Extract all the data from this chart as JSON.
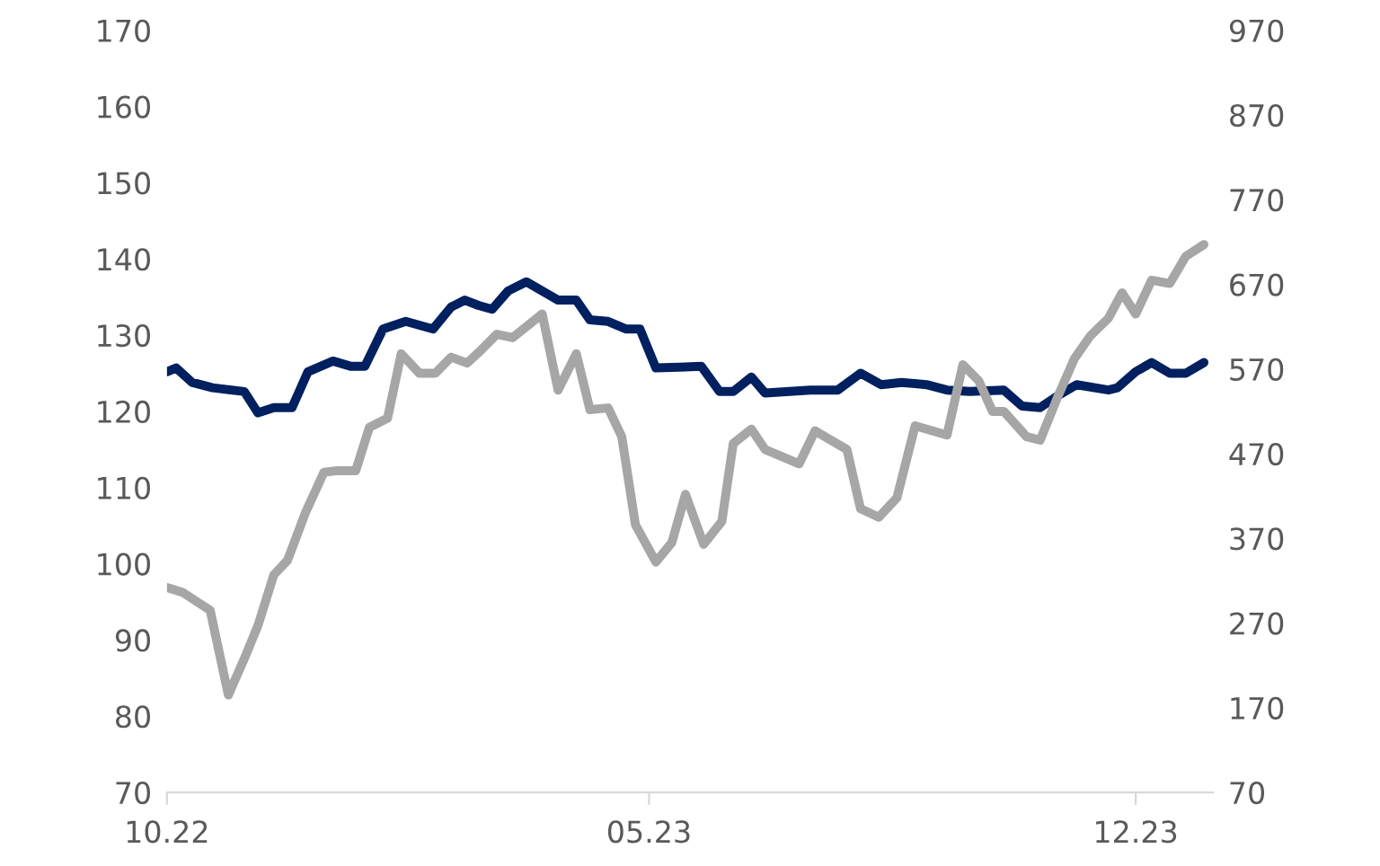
{
  "chart_data": {
    "type": "line",
    "xlim": [
      "2022-10-01",
      "2024-01-04"
    ],
    "xticks": [
      {
        "value": "2022-10-01",
        "label": "10.22"
      },
      {
        "value": "2023-05-01",
        "label": "05.23"
      },
      {
        "value": "2023-12-01",
        "label": "12.23"
      }
    ],
    "ylim": [
      70,
      170
    ],
    "yticks": [
      70,
      80,
      90,
      100,
      110,
      120,
      130,
      140,
      150,
      160,
      170
    ],
    "y2lim": [
      70,
      970
    ],
    "y2ticks": [
      70,
      170,
      270,
      370,
      470,
      570,
      670,
      770,
      870,
      970
    ],
    "grid": false,
    "legend": false,
    "marker": "none",
    "line_style": "solid",
    "series": [
      {
        "color": "#002060",
        "x": [
          "2022-10-01",
          "2022-10-05",
          "2022-10-12",
          "2022-10-21",
          "2022-11-04",
          "2022-11-10",
          "2022-11-17",
          "2022-11-25",
          "2022-12-02",
          "2022-12-13",
          "2022-12-21",
          "2022-12-27",
          "2023-01-04",
          "2023-01-14",
          "2023-01-26",
          "2023-02-03",
          "2023-02-09",
          "2023-02-15",
          "2023-02-21",
          "2023-02-28",
          "2023-03-08",
          "2023-03-22",
          "2023-03-30",
          "2023-04-05",
          "2023-04-13",
          "2023-04-21",
          "2023-04-27",
          "2023-05-04",
          "2023-05-24",
          "2023-06-01",
          "2023-06-07",
          "2023-06-15",
          "2023-06-21",
          "2023-07-11",
          "2023-07-23",
          "2023-08-02",
          "2023-08-11",
          "2023-08-20",
          "2023-08-31",
          "2023-09-09",
          "2023-09-19",
          "2023-10-04",
          "2023-10-12",
          "2023-10-20",
          "2023-10-28",
          "2023-11-05",
          "2023-11-19",
          "2023-11-23",
          "2023-12-01",
          "2023-12-08",
          "2023-12-16",
          "2023-12-23",
          "2023-12-31"
        ],
        "values": [
          125.2,
          125.7,
          123.8,
          123.1,
          122.6,
          119.8,
          120.5,
          120.5,
          125.2,
          126.6,
          125.9,
          125.9,
          130.8,
          131.8,
          130.8,
          133.7,
          134.6,
          133.9,
          133.4,
          135.8,
          137.0,
          134.6,
          134.6,
          132.0,
          131.8,
          130.8,
          130.8,
          125.7,
          125.9,
          122.6,
          122.6,
          124.5,
          122.4,
          122.8,
          122.8,
          125.0,
          123.5,
          123.8,
          123.5,
          122.8,
          122.6,
          122.8,
          120.7,
          120.5,
          122.1,
          123.5,
          122.8,
          123.1,
          125.2,
          126.4,
          125.0,
          125.0,
          126.4
        ]
      },
      {
        "color": "#a6a6a6",
        "axis": "y2",
        "x": [
          "2022-10-01",
          "2022-10-08",
          "2022-10-20",
          "2022-10-28",
          "2022-11-04",
          "2022-11-10",
          "2022-11-17",
          "2022-11-23",
          "2022-12-01",
          "2022-12-09",
          "2022-12-15",
          "2022-12-23",
          "2022-12-29",
          "2023-01-06",
          "2023-01-12",
          "2023-01-20",
          "2023-01-27",
          "2023-02-03",
          "2023-02-10",
          "2023-02-16",
          "2023-02-23",
          "2023-03-02",
          "2023-03-15",
          "2023-03-22",
          "2023-03-30",
          "2023-04-05",
          "2023-04-13",
          "2023-04-19",
          "2023-04-25",
          "2023-05-04",
          "2023-05-11",
          "2023-05-17",
          "2023-05-25",
          "2023-06-02",
          "2023-06-07",
          "2023-06-15",
          "2023-06-21",
          "2023-07-06",
          "2023-07-13",
          "2023-07-27",
          "2023-08-02",
          "2023-08-10",
          "2023-08-18",
          "2023-08-26",
          "2023-09-09",
          "2023-09-16",
          "2023-09-23",
          "2023-09-29",
          "2023-10-04",
          "2023-10-14",
          "2023-10-20",
          "2023-10-28",
          "2023-11-04",
          "2023-11-11",
          "2023-11-19",
          "2023-11-25",
          "2023-12-01",
          "2023-12-08",
          "2023-12-16",
          "2023-12-23",
          "2023-12-31"
        ],
        "values": [
          312,
          306,
          285,
          185,
          228,
          267,
          327,
          344,
          401,
          448,
          450,
          450,
          501,
          512,
          588,
          565,
          565,
          584,
          577,
          592,
          611,
          607,
          635,
          545,
          588,
          522,
          524,
          490,
          386,
          342,
          365,
          422,
          363,
          390,
          482,
          499,
          475,
          458,
          497,
          475,
          405,
          395,
          418,
          503,
          492,
          575,
          556,
          520,
          520,
          490,
          486,
          539,
          582,
          609,
          630,
          660,
          635,
          675,
          671,
          703,
          717
        ]
      }
    ]
  }
}
